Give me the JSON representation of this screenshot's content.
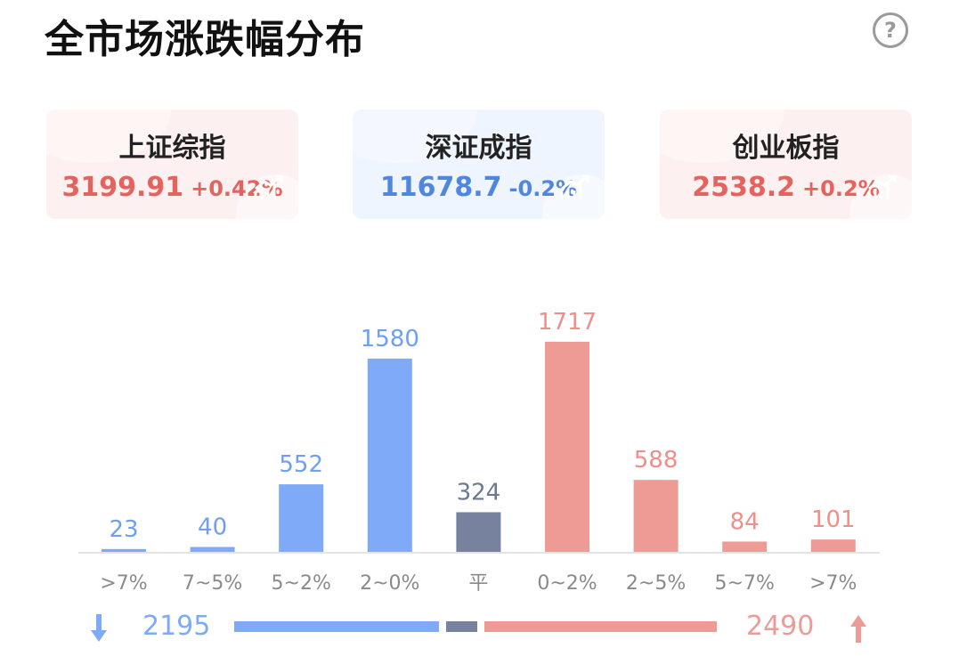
{
  "title": "全市场涨跌幅分布",
  "indices": [
    {
      "name": "上证综指",
      "value": "3199.91",
      "change": "+0.42%",
      "trend": "up"
    },
    {
      "name": "深证成指",
      "value": "11678.7",
      "change": "-0.2%",
      "trend": "down"
    },
    {
      "name": "创业板指",
      "value": "2538.2",
      "change": "+0.2%",
      "trend": "up"
    }
  ],
  "colors": {
    "down": "#7eaaf7",
    "flat": "#76829e",
    "up": "#ee9b96",
    "down_text": "#4f86e0",
    "up_text": "#e5635f"
  },
  "chart_data": {
    "type": "bar",
    "categories": [
      ">7%",
      "7~5%",
      "5~2%",
      "2~0%",
      "平",
      "0~2%",
      "2~5%",
      "5~7%",
      ">7%"
    ],
    "values": [
      23,
      40,
      552,
      1580,
      324,
      1717,
      588,
      84,
      101
    ],
    "groups": [
      "down",
      "down",
      "down",
      "down",
      "flat",
      "up",
      "up",
      "up",
      "up"
    ],
    "ylim": [
      0,
      1717
    ]
  },
  "summary": {
    "down_total": "2195",
    "flat_total": 324,
    "up_total": "2490"
  }
}
